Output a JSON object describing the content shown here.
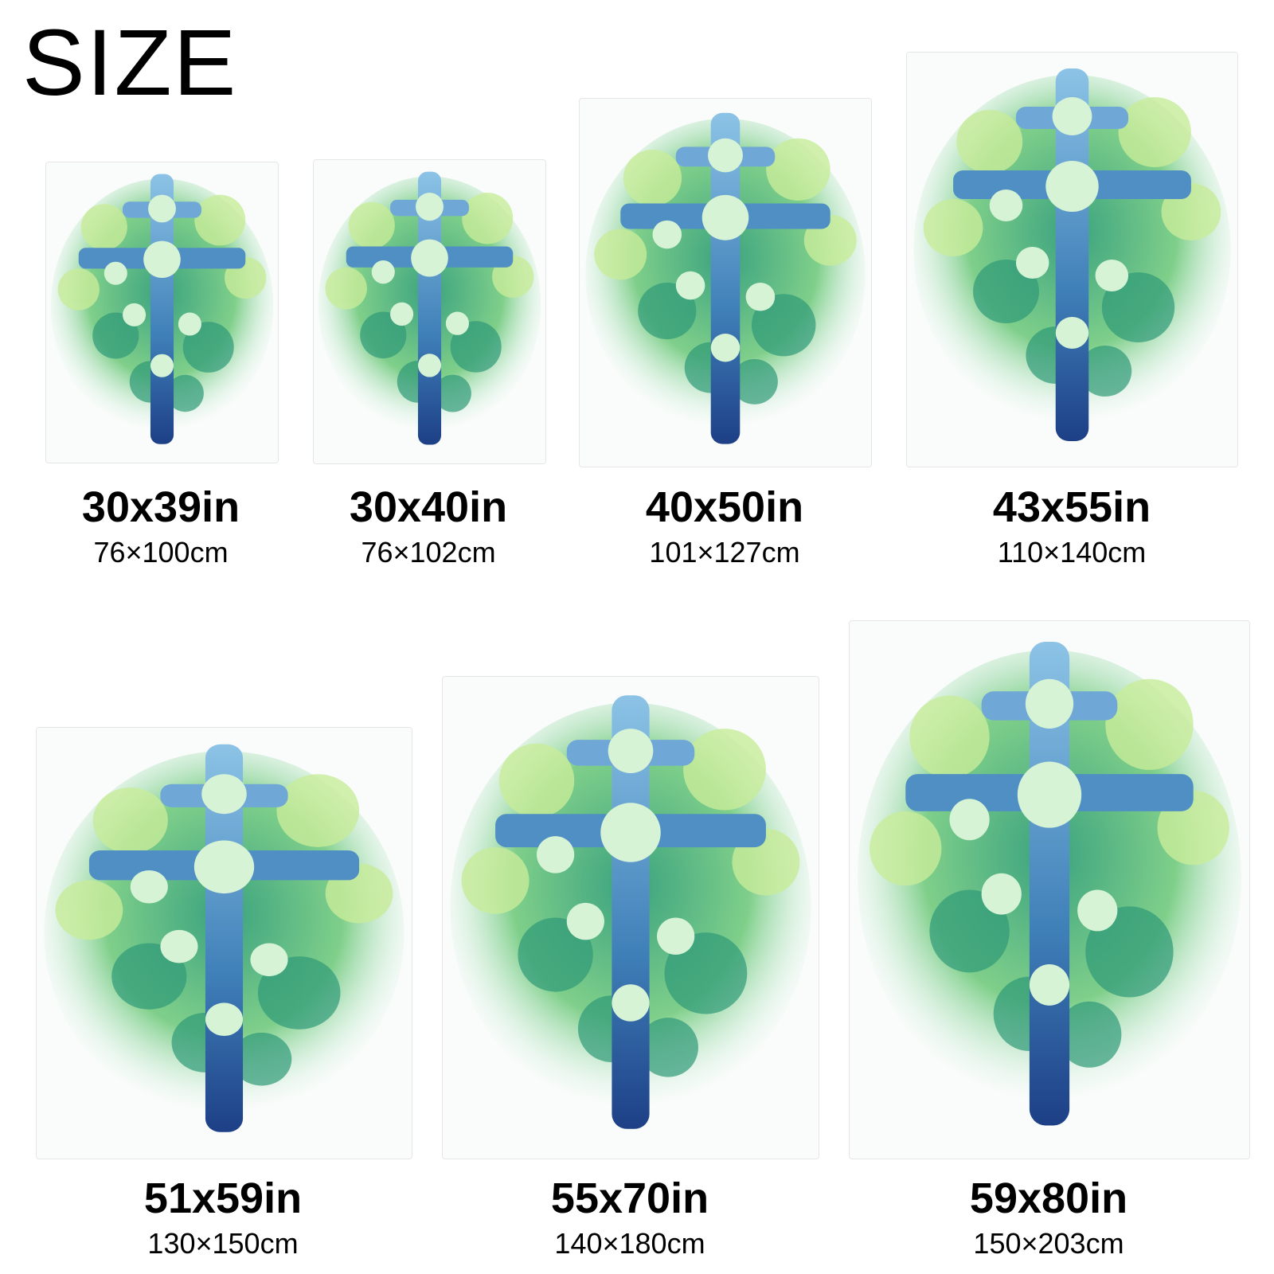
{
  "heading": "SIZE",
  "sizes": [
    {
      "inches": "30x39in",
      "cm": "76×100cm"
    },
    {
      "inches": "30x40in",
      "cm": "76×102cm"
    },
    {
      "inches": "40x50in",
      "cm": "101×127cm"
    },
    {
      "inches": "43x55in",
      "cm": "110×140cm"
    },
    {
      "inches": "51x59in",
      "cm": "130×150cm"
    },
    {
      "inches": "55x70in",
      "cm": "140×180cm"
    },
    {
      "inches": "59x80in",
      "cm": "150×203cm"
    }
  ],
  "colors": {
    "cross": "#3f7fb8",
    "cross_dark": "#1d3f86",
    "clover_light": "#a8dd8a",
    "clover_dark": "#2f9a78"
  }
}
